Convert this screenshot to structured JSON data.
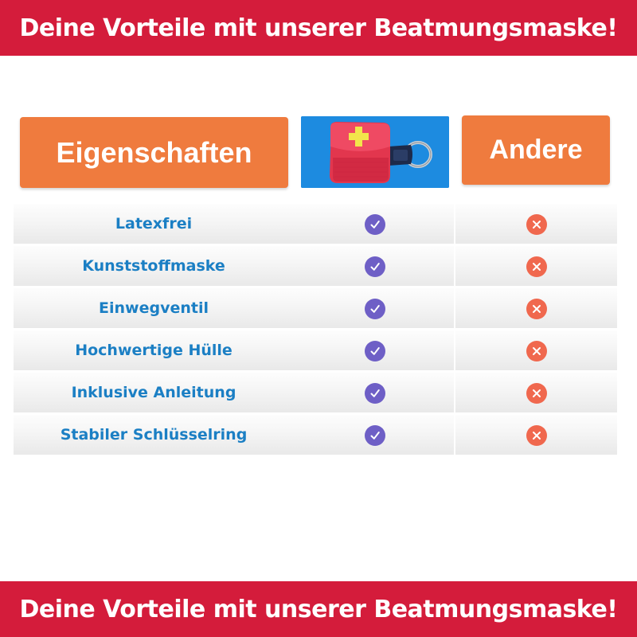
{
  "banner": {
    "text": "Deine Vorteile mit unserer Beatmungsmaske!"
  },
  "table": {
    "header_left": "Eigenschaften",
    "header_product_icon": "red-cpr-mask-keychain-pouch",
    "header_right": "Andere",
    "rows": [
      {
        "label": "Latexfrei",
        "ours": "check-icon",
        "others": "cross-icon"
      },
      {
        "label": "Kunststoffmaske",
        "ours": "check-icon",
        "others": "cross-icon"
      },
      {
        "label": "Einwegventil",
        "ours": "check-icon",
        "others": "cross-icon"
      },
      {
        "label": "Hochwertige Hülle",
        "ours": "check-icon",
        "others": "cross-icon"
      },
      {
        "label": "Inklusive Anleitung",
        "ours": "check-icon",
        "others": "cross-icon"
      },
      {
        "label": "Stabiler Schlüsselring",
        "ours": "check-icon",
        "others": "cross-icon"
      }
    ]
  },
  "colors": {
    "banner": "#d41c3b",
    "header": "#ef7b3e",
    "product_bg": "#1d8be0",
    "label_text": "#1b7fc4",
    "check": "#6e5fc6",
    "cross": "#f0684e"
  }
}
